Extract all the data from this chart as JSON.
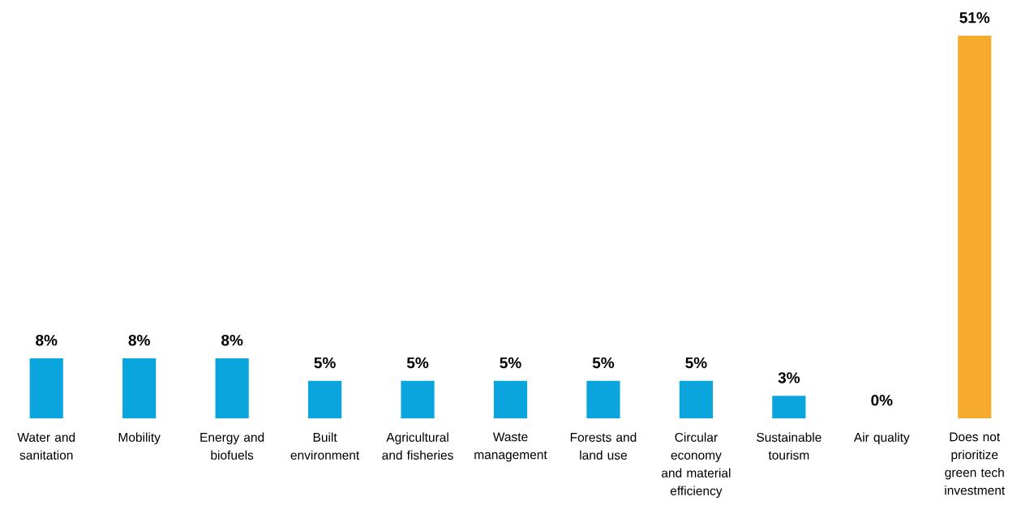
{
  "chart_data": {
    "type": "bar",
    "categories": [
      "Water and sanitation",
      "Mobility",
      "Energy and biofuels",
      "Built environment",
      "Agricultural and fisheries",
      "Waste management",
      "Forests and land use",
      "Circular economy and material efficiency",
      "Sustainable tourism",
      "Air quality",
      "Does not prioritize green tech investment"
    ],
    "values": [
      8,
      8,
      8,
      5,
      5,
      5,
      5,
      5,
      3,
      0,
      51
    ],
    "value_labels": [
      "8%",
      "8%",
      "8%",
      "5%",
      "5%",
      "5%",
      "5%",
      "5%",
      "3%",
      "0%",
      "51%"
    ],
    "colors": [
      "#0ba5de",
      "#0ba5de",
      "#0ba5de",
      "#0ba5de",
      "#0ba5de",
      "#0ba5de",
      "#0ba5de",
      "#0ba5de",
      "#0ba5de",
      "#0ba5de",
      "#f7ab2e"
    ]
  }
}
